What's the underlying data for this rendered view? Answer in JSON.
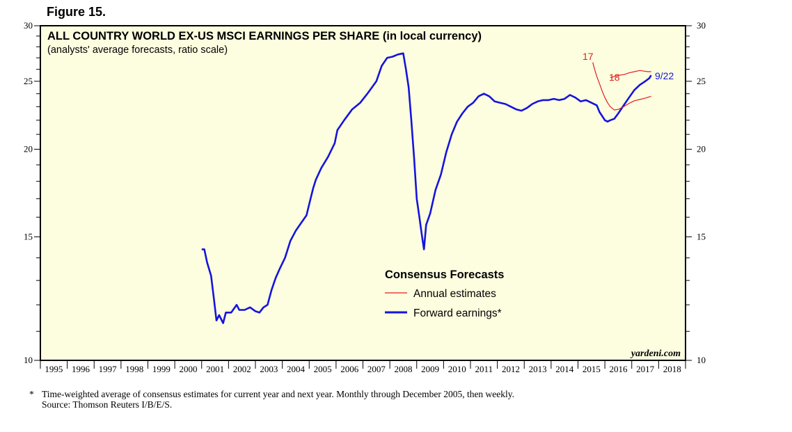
{
  "figure_label": "Figure 15.",
  "footnote": {
    "marker": "*",
    "line1": "Time-weighted average of consensus estimates for current year and next year. Monthly through December 2005, then weekly.",
    "line2": "Source: Thomson Reuters I/B/E/S."
  },
  "chart_data": {
    "type": "line",
    "title": "ALL COUNTRY WORLD EX-US MSCI EARNINGS PER SHARE (in local currency)",
    "subtitle": "(analysts' average forecasts, ratio scale)",
    "watermark": "yardeni.com",
    "background": "#fdfde0",
    "y_scale": "log",
    "ylim": [
      10,
      30
    ],
    "y_ticks": [
      10,
      15,
      20,
      25,
      30
    ],
    "xlim": [
      1995,
      2019
    ],
    "x_tick_labels": [
      "1995",
      "1996",
      "1997",
      "1998",
      "1999",
      "2000",
      "2001",
      "2002",
      "2003",
      "2004",
      "2005",
      "2006",
      "2007",
      "2008",
      "2009",
      "2010",
      "2011",
      "2012",
      "2013",
      "2014",
      "2015",
      "2016",
      "2017",
      "2018"
    ],
    "legend": {
      "title": "Consensus Forecasts",
      "position": "center",
      "items": [
        {
          "label": "Annual estimates",
          "color": "#e0201b"
        },
        {
          "label": "Forward earnings*",
          "color": "#1414dc"
        }
      ]
    },
    "annotations": [
      {
        "text": "17",
        "color": "#e0201b"
      },
      {
        "text": "18",
        "color": "#e0201b"
      },
      {
        "text": "9/22",
        "color": "#1414dc"
      }
    ],
    "series": [
      {
        "label_ref": "Forward earnings*",
        "color": "#1414dc",
        "points": [
          [
            2001.0,
            14.4
          ],
          [
            2001.1,
            14.4
          ],
          [
            2001.2,
            13.8
          ],
          [
            2001.35,
            13.2
          ],
          [
            2001.45,
            12.3
          ],
          [
            2001.55,
            11.4
          ],
          [
            2001.65,
            11.6
          ],
          [
            2001.8,
            11.3
          ],
          [
            2001.9,
            11.7
          ],
          [
            2002.1,
            11.7
          ],
          [
            2002.3,
            12.0
          ],
          [
            2002.4,
            11.8
          ],
          [
            2002.6,
            11.8
          ],
          [
            2002.8,
            11.9
          ],
          [
            2003.0,
            11.75
          ],
          [
            2003.15,
            11.7
          ],
          [
            2003.3,
            11.9
          ],
          [
            2003.45,
            12.0
          ],
          [
            2003.6,
            12.6
          ],
          [
            2003.75,
            13.1
          ],
          [
            2003.9,
            13.5
          ],
          [
            2004.1,
            14.0
          ],
          [
            2004.3,
            14.8
          ],
          [
            2004.5,
            15.3
          ],
          [
            2004.7,
            15.7
          ],
          [
            2004.9,
            16.1
          ],
          [
            2005.05,
            17.0
          ],
          [
            2005.15,
            17.6
          ],
          [
            2005.25,
            18.1
          ],
          [
            2005.45,
            18.8
          ],
          [
            2005.7,
            19.5
          ],
          [
            2005.95,
            20.4
          ],
          [
            2006.05,
            21.3
          ],
          [
            2006.3,
            22.0
          ],
          [
            2006.6,
            22.8
          ],
          [
            2006.9,
            23.3
          ],
          [
            2007.2,
            24.1
          ],
          [
            2007.5,
            25.0
          ],
          [
            2007.7,
            26.3
          ],
          [
            2007.9,
            27.0
          ],
          [
            2008.1,
            27.1
          ],
          [
            2008.3,
            27.3
          ],
          [
            2008.5,
            27.4
          ],
          [
            2008.6,
            26.0
          ],
          [
            2008.7,
            24.5
          ],
          [
            2008.8,
            22.0
          ],
          [
            2008.9,
            19.5
          ],
          [
            2009.0,
            17.0
          ],
          [
            2009.1,
            16.0
          ],
          [
            2009.2,
            15.0
          ],
          [
            2009.27,
            14.4
          ],
          [
            2009.35,
            15.6
          ],
          [
            2009.5,
            16.2
          ],
          [
            2009.7,
            17.5
          ],
          [
            2009.9,
            18.4
          ],
          [
            2010.1,
            19.8
          ],
          [
            2010.3,
            21.0
          ],
          [
            2010.5,
            21.9
          ],
          [
            2010.7,
            22.5
          ],
          [
            2010.9,
            23.0
          ],
          [
            2011.1,
            23.3
          ],
          [
            2011.3,
            23.8
          ],
          [
            2011.5,
            24.0
          ],
          [
            2011.7,
            23.8
          ],
          [
            2011.9,
            23.4
          ],
          [
            2012.1,
            23.3
          ],
          [
            2012.3,
            23.2
          ],
          [
            2012.5,
            23.0
          ],
          [
            2012.7,
            22.8
          ],
          [
            2012.9,
            22.7
          ],
          [
            2013.1,
            22.9
          ],
          [
            2013.3,
            23.2
          ],
          [
            2013.5,
            23.4
          ],
          [
            2013.7,
            23.5
          ],
          [
            2013.9,
            23.5
          ],
          [
            2014.1,
            23.6
          ],
          [
            2014.3,
            23.5
          ],
          [
            2014.5,
            23.6
          ],
          [
            2014.7,
            23.9
          ],
          [
            2014.9,
            23.7
          ],
          [
            2015.1,
            23.4
          ],
          [
            2015.3,
            23.5
          ],
          [
            2015.5,
            23.3
          ],
          [
            2015.7,
            23.1
          ],
          [
            2015.8,
            22.6
          ],
          [
            2015.9,
            22.3
          ],
          [
            2016.0,
            22.0
          ],
          [
            2016.1,
            21.9
          ],
          [
            2016.2,
            22.0
          ],
          [
            2016.35,
            22.1
          ],
          [
            2016.5,
            22.5
          ],
          [
            2016.7,
            23.1
          ],
          [
            2016.9,
            23.7
          ],
          [
            2017.1,
            24.3
          ],
          [
            2017.3,
            24.7
          ],
          [
            2017.5,
            25.0
          ],
          [
            2017.65,
            25.25
          ],
          [
            2017.72,
            25.5
          ]
        ]
      },
      {
        "label_ref": "Annual estimates",
        "name": "17",
        "color": "#e0201b",
        "points": [
          [
            2015.55,
            26.6
          ],
          [
            2015.62,
            26.0
          ],
          [
            2015.7,
            25.4
          ],
          [
            2015.8,
            24.8
          ],
          [
            2015.9,
            24.2
          ],
          [
            2016.0,
            23.7
          ],
          [
            2016.1,
            23.3
          ],
          [
            2016.2,
            23.0
          ],
          [
            2016.35,
            22.75
          ],
          [
            2016.5,
            22.8
          ],
          [
            2016.7,
            23.0
          ],
          [
            2016.9,
            23.25
          ],
          [
            2017.1,
            23.45
          ],
          [
            2017.3,
            23.55
          ],
          [
            2017.5,
            23.65
          ],
          [
            2017.72,
            23.8
          ]
        ]
      },
      {
        "label_ref": "Annual estimates",
        "name": "18",
        "color": "#e0201b",
        "points": [
          [
            2016.2,
            25.3
          ],
          [
            2016.35,
            25.4
          ],
          [
            2016.5,
            25.5
          ],
          [
            2016.7,
            25.55
          ],
          [
            2016.9,
            25.7
          ],
          [
            2017.1,
            25.8
          ],
          [
            2017.3,
            25.9
          ],
          [
            2017.45,
            25.85
          ],
          [
            2017.6,
            25.8
          ],
          [
            2017.72,
            25.8
          ]
        ]
      }
    ]
  }
}
